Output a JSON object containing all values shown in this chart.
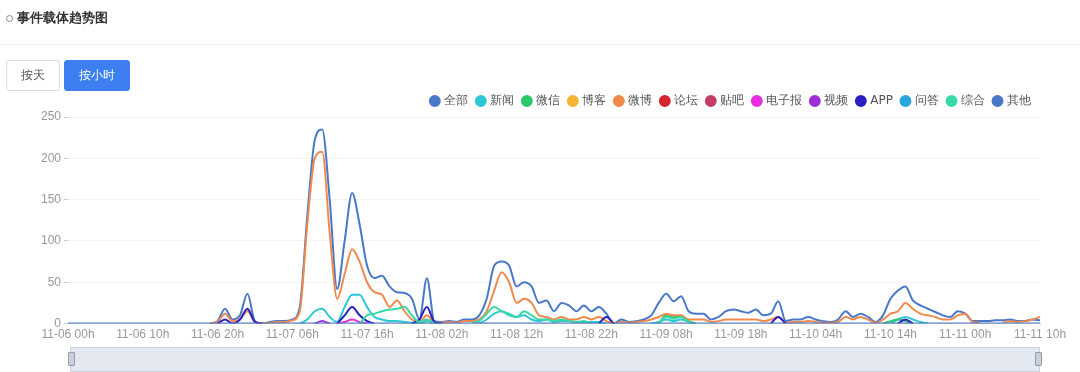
{
  "chart_data": {
    "type": "line",
    "title": "事件载体趋势图",
    "annotations": [
      "按天",
      "按小时"
    ],
    "categories": [
      "11-06 00h",
      null,
      null,
      null,
      null,
      null,
      null,
      null,
      null,
      null,
      "11-06 10h",
      null,
      null,
      null,
      null,
      null,
      null,
      null,
      null,
      null,
      "11-06 20h",
      null,
      null,
      null,
      null,
      null,
      null,
      null,
      null,
      null,
      "11-07 06h",
      null,
      null,
      null,
      null,
      null,
      null,
      null,
      null,
      null,
      "11-07 16h",
      null,
      null,
      null,
      null,
      null,
      null,
      null,
      null,
      null,
      "11-08 02h",
      null,
      null,
      null,
      null,
      null,
      null,
      null,
      null,
      null,
      "11-08 12h",
      null,
      null,
      null,
      null,
      null,
      null,
      null,
      null,
      null,
      "11-08 22h",
      null,
      null,
      null,
      null,
      null,
      null,
      null,
      null,
      null,
      "11-09 08h",
      null,
      null,
      null,
      null,
      null,
      null,
      null,
      null,
      null,
      "11-09 18h",
      null,
      null,
      null,
      null,
      null,
      null,
      null,
      null,
      null,
      "11-10 04h",
      null,
      null,
      null,
      null,
      null,
      null,
      null,
      null,
      null,
      "11-10 14h",
      null,
      null,
      null,
      null,
      null,
      null,
      null,
      null,
      null,
      "11-11 00h",
      null,
      null,
      null,
      null,
      null,
      null,
      null,
      null,
      null,
      "11-11 10h"
    ],
    "ylim": [
      0,
      250
    ],
    "yticks": [
      0,
      50,
      100,
      150,
      200,
      250
    ],
    "grid": "y",
    "legend": "top right",
    "marker": "none",
    "line_style": "solid",
    "series": [
      {
        "name": "全部",
        "color": "#4a78c8",
        "values": [
          null,
          null,
          null,
          null,
          null,
          null,
          null,
          null,
          null,
          null,
          null,
          null,
          null,
          null,
          null,
          null,
          null,
          null,
          null,
          0,
          3,
          18,
          5,
          10,
          36,
          3,
          0,
          2,
          3,
          3,
          5,
          20,
          130,
          222,
          235,
          150,
          42,
          100,
          158,
          120,
          70,
          55,
          58,
          45,
          38,
          37,
          30,
          5,
          55,
          3,
          2,
          3,
          2,
          5,
          5,
          10,
          30,
          70,
          75,
          70,
          45,
          50,
          45,
          25,
          28,
          15,
          25,
          22,
          15,
          22,
          15,
          20,
          12,
          0,
          5,
          2,
          3,
          5,
          10,
          25,
          36,
          27,
          33,
          15,
          12,
          12,
          5,
          8,
          15,
          17,
          15,
          13,
          17,
          10,
          12,
          27,
          3,
          5,
          5,
          8,
          5,
          3,
          2,
          5,
          15,
          8,
          12,
          8,
          2,
          10,
          30,
          40,
          45,
          28,
          22,
          18,
          14,
          10,
          8,
          15,
          12,
          3,
          3,
          3,
          4,
          4,
          5,
          3,
          3,
          5,
          4
        ]
      },
      {
        "name": "新闻",
        "color": "#2ec7d4",
        "values": [
          null,
          null,
          null,
          null,
          null,
          null,
          null,
          null,
          null,
          null,
          null,
          null,
          null,
          null,
          null,
          null,
          null,
          null,
          null,
          null,
          null,
          null,
          null,
          null,
          null,
          null,
          null,
          null,
          null,
          null,
          null,
          0,
          5,
          15,
          18,
          8,
          2,
          20,
          35,
          35,
          20,
          8,
          5,
          3,
          3,
          2,
          1,
          0,
          3,
          0,
          null,
          null,
          null,
          null,
          null,
          0,
          5,
          12,
          15,
          10,
          8,
          10,
          5,
          3,
          5,
          2,
          3,
          3,
          2,
          2,
          2,
          2,
          0,
          null,
          null,
          null,
          null,
          null,
          0,
          2,
          5,
          3,
          5,
          2,
          0,
          null,
          null,
          null,
          null,
          null,
          null,
          null,
          null,
          null,
          null,
          null,
          null,
          null,
          null,
          null,
          null,
          null,
          null,
          null,
          null,
          null,
          null,
          null,
          null,
          null,
          0,
          5,
          8,
          5,
          2,
          0,
          null,
          null,
          null,
          null,
          null,
          null,
          null,
          null,
          null,
          null,
          null,
          null,
          null,
          null,
          null
        ]
      },
      {
        "name": "微信",
        "color": "#2cc86a",
        "values": [
          null,
          null,
          null,
          null,
          null,
          null,
          null,
          null,
          null,
          null,
          null,
          null,
          null,
          null,
          null,
          null,
          null,
          null,
          null,
          null,
          null,
          null,
          null,
          null,
          null,
          null,
          null,
          null,
          null,
          null,
          null,
          null,
          null,
          null,
          null,
          null,
          null,
          null,
          null,
          null,
          null,
          null,
          null,
          null,
          null,
          null,
          null,
          null,
          null,
          null,
          null,
          null,
          null,
          null,
          null,
          null,
          null,
          null,
          null,
          null,
          null,
          null,
          null,
          null,
          null,
          null,
          null,
          null,
          null,
          null,
          null,
          null,
          null,
          null,
          null,
          null,
          null,
          null,
          null,
          0,
          10,
          8,
          8,
          3,
          0,
          null,
          null,
          null,
          null,
          null,
          null,
          null,
          null,
          null,
          null,
          null,
          null,
          null,
          null,
          null,
          null,
          null,
          null,
          null,
          null,
          null,
          null,
          null,
          null,
          0,
          3,
          5,
          3,
          0,
          null,
          null,
          null,
          null,
          null,
          null,
          null,
          null,
          null,
          null,
          null,
          null,
          null,
          null,
          null,
          null,
          null
        ]
      },
      {
        "name": "博客",
        "color": "#f5b335",
        "values": [
          null,
          null,
          null,
          null,
          null,
          null,
          null,
          null,
          null,
          null,
          null,
          null,
          null,
          null,
          null,
          null,
          null,
          null,
          null,
          null,
          null,
          null,
          null,
          null,
          null,
          null,
          null,
          null,
          null,
          null,
          null,
          null,
          null,
          null,
          null,
          null,
          null,
          null,
          null,
          null,
          null,
          null,
          null,
          null,
          null,
          null,
          null,
          null,
          null,
          null,
          null,
          null,
          null,
          null,
          null,
          null,
          null,
          null,
          null,
          null,
          null,
          null,
          null,
          null,
          null,
          null,
          null,
          null,
          null,
          null,
          null,
          null,
          null,
          null,
          null,
          null,
          null,
          null,
          null,
          null,
          null,
          null,
          null,
          null,
          null,
          null,
          null,
          null,
          null,
          null,
          null,
          null,
          null,
          null,
          null,
          null,
          null,
          null,
          null,
          null,
          null,
          null,
          null,
          null,
          null,
          null,
          null,
          null,
          null,
          null,
          null,
          null,
          null,
          null,
          null,
          null,
          null,
          null,
          null,
          null,
          null,
          null,
          null,
          null,
          null,
          null,
          null,
          null,
          null,
          null,
          null
        ]
      },
      {
        "name": "微博",
        "color": "#ef8a4c",
        "values": [
          null,
          null,
          null,
          null,
          null,
          null,
          null,
          null,
          null,
          null,
          null,
          null,
          null,
          null,
          null,
          null,
          null,
          null,
          null,
          0,
          2,
          12,
          3,
          5,
          15,
          2,
          0,
          1,
          2,
          2,
          4,
          15,
          120,
          200,
          208,
          110,
          30,
          60,
          90,
          75,
          50,
          38,
          35,
          20,
          28,
          15,
          5,
          2,
          10,
          1,
          1,
          2,
          1,
          3,
          3,
          5,
          15,
          40,
          62,
          50,
          25,
          30,
          25,
          10,
          8,
          5,
          8,
          5,
          5,
          8,
          5,
          8,
          3,
          0,
          2,
          1,
          2,
          3,
          5,
          8,
          12,
          10,
          10,
          5,
          5,
          5,
          2,
          3,
          5,
          5,
          5,
          5,
          5,
          3,
          5,
          8,
          1,
          2,
          2,
          3,
          2,
          1,
          1,
          2,
          8,
          5,
          8,
          5,
          1,
          5,
          12,
          15,
          25,
          18,
          12,
          10,
          8,
          5,
          5,
          10,
          12,
          2,
          1,
          null,
          null,
          1,
          3,
          2,
          3,
          5,
          8
        ]
      },
      {
        "name": "论坛",
        "color": "#d6262b",
        "values": [
          null,
          null,
          null,
          null,
          null,
          null,
          null,
          null,
          null,
          null,
          null,
          null,
          null,
          null,
          null,
          null,
          null,
          null,
          null,
          null,
          null,
          null,
          null,
          null,
          null,
          null,
          null,
          null,
          null,
          null,
          null,
          null,
          null,
          null,
          null,
          null,
          null,
          null,
          null,
          null,
          null,
          null,
          null,
          null,
          null,
          null,
          null,
          null,
          null,
          null,
          null,
          null,
          null,
          null,
          null,
          null,
          null,
          null,
          null,
          null,
          null,
          null,
          null,
          null,
          null,
          null,
          null,
          null,
          null,
          null,
          null,
          null,
          null,
          null,
          null,
          null,
          null,
          null,
          null,
          null,
          null,
          null,
          null,
          null,
          null,
          null,
          null,
          null,
          null,
          null,
          null,
          null,
          null,
          null,
          null,
          null,
          null,
          null,
          null,
          null,
          null,
          null,
          null,
          null,
          null,
          null,
          null,
          null,
          null,
          null,
          null,
          null,
          null,
          null,
          null,
          null,
          null,
          null,
          null,
          null,
          null,
          null,
          null,
          null,
          null,
          null,
          null,
          null,
          null,
          null,
          null
        ]
      },
      {
        "name": "贴吧",
        "color": "#c33e62",
        "values": [
          null,
          null,
          null,
          null,
          null,
          null,
          null,
          null,
          null,
          null,
          null,
          null,
          null,
          null,
          null,
          null,
          null,
          null,
          null,
          null,
          null,
          null,
          null,
          null,
          null,
          null,
          null,
          null,
          null,
          null,
          null,
          null,
          null,
          null,
          null,
          null,
          null,
          null,
          null,
          null,
          null,
          null,
          null,
          null,
          null,
          null,
          null,
          null,
          null,
          null,
          null,
          null,
          null,
          null,
          null,
          null,
          null,
          null,
          null,
          null,
          null,
          null,
          null,
          null,
          null,
          null,
          null,
          null,
          null,
          null,
          null,
          null,
          null,
          null,
          null,
          null,
          null,
          null,
          null,
          null,
          null,
          null,
          null,
          null,
          null,
          null,
          null,
          null,
          null,
          null,
          null,
          null,
          null,
          null,
          null,
          null,
          null,
          null,
          null,
          null,
          null,
          null,
          null,
          null,
          null,
          null,
          null,
          null,
          null,
          null,
          null,
          null,
          null,
          null,
          null,
          null,
          null,
          null,
          null,
          null,
          null,
          null,
          null,
          null,
          null,
          null,
          null,
          null,
          null,
          null,
          null
        ]
      },
      {
        "name": "电子报",
        "color": "#e72fe0",
        "values": [
          null,
          null,
          null,
          null,
          null,
          null,
          null,
          null,
          null,
          null,
          null,
          null,
          null,
          null,
          null,
          null,
          null,
          null,
          null,
          null,
          null,
          null,
          null,
          null,
          null,
          null,
          null,
          null,
          null,
          null,
          null,
          null,
          null,
          null,
          null,
          null,
          0,
          2,
          5,
          2,
          0,
          null,
          null,
          null,
          null,
          null,
          null,
          null,
          null,
          null,
          null,
          null,
          null,
          null,
          null,
          null,
          null,
          null,
          null,
          null,
          null,
          null,
          null,
          null,
          null,
          null,
          null,
          null,
          null,
          null,
          null,
          null,
          null,
          null,
          null,
          null,
          null,
          null,
          null,
          null,
          null,
          null,
          null,
          null,
          null,
          null,
          null,
          null,
          null,
          null,
          null,
          null,
          null,
          null,
          null,
          null,
          null,
          null,
          null,
          null,
          null,
          null,
          null,
          null,
          null,
          null,
          null,
          null,
          null,
          null,
          null,
          null,
          null,
          null,
          null,
          null,
          null,
          null,
          null,
          null,
          null,
          null,
          null,
          null,
          null,
          null,
          null,
          null,
          null,
          null,
          null
        ]
      },
      {
        "name": "视频",
        "color": "#9b2fd8",
        "values": [
          null,
          null,
          null,
          null,
          null,
          null,
          null,
          null,
          null,
          null,
          null,
          null,
          null,
          null,
          null,
          null,
          null,
          null,
          null,
          null,
          null,
          null,
          null,
          null,
          null,
          null,
          null,
          null,
          null,
          null,
          null,
          null,
          null,
          0,
          3,
          0,
          null,
          null,
          null,
          null,
          null,
          null,
          null,
          null,
          null,
          null,
          null,
          null,
          null,
          null,
          null,
          null,
          null,
          null,
          null,
          null,
          null,
          null,
          null,
          null,
          null,
          null,
          null,
          null,
          null,
          null,
          null,
          null,
          null,
          null,
          null,
          null,
          null,
          null,
          null,
          null,
          null,
          null,
          null,
          null,
          null,
          null,
          null,
          null,
          null,
          null,
          null,
          null,
          null,
          null,
          null,
          null,
          null,
          null,
          null,
          null,
          null,
          null,
          null,
          null,
          null,
          null,
          null,
          null,
          null,
          null,
          null,
          null,
          null,
          null,
          null,
          null,
          null,
          null,
          null,
          null,
          null,
          null,
          null,
          null,
          null,
          null,
          null,
          null,
          null,
          null,
          null,
          null,
          null,
          null,
          null
        ]
      },
      {
        "name": "APP",
        "color": "#2a1fc0",
        "values": [
          null,
          null,
          null,
          null,
          null,
          null,
          null,
          null,
          null,
          null,
          null,
          null,
          null,
          null,
          null,
          null,
          null,
          null,
          null,
          null,
          0,
          5,
          0,
          5,
          18,
          2,
          0,
          null,
          null,
          null,
          null,
          null,
          null,
          null,
          null,
          null,
          0,
          10,
          20,
          10,
          3,
          0,
          null,
          null,
          null,
          null,
          0,
          5,
          20,
          2,
          0,
          null,
          null,
          null,
          null,
          null,
          null,
          null,
          null,
          null,
          null,
          null,
          null,
          null,
          null,
          null,
          null,
          null,
          null,
          null,
          null,
          0,
          8,
          0,
          null,
          null,
          null,
          null,
          null,
          null,
          null,
          null,
          null,
          null,
          null,
          null,
          null,
          null,
          null,
          null,
          null,
          null,
          null,
          null,
          0,
          8,
          0,
          null,
          null,
          null,
          null,
          null,
          null,
          null,
          null,
          null,
          null,
          null,
          null,
          null,
          null,
          0,
          5,
          0,
          null,
          null,
          null,
          null,
          null,
          null,
          null,
          null,
          null,
          null,
          null,
          null,
          null,
          null,
          null,
          null,
          null
        ]
      },
      {
        "name": "问答",
        "color": "#2aa5dd",
        "values": [
          null,
          null,
          null,
          null,
          null,
          null,
          null,
          null,
          null,
          null,
          null,
          null,
          null,
          null,
          null,
          null,
          null,
          null,
          null,
          null,
          null,
          null,
          null,
          null,
          null,
          null,
          null,
          null,
          null,
          null,
          null,
          null,
          null,
          null,
          null,
          null,
          null,
          null,
          null,
          null,
          null,
          null,
          null,
          null,
          null,
          null,
          null,
          null,
          null,
          null,
          null,
          null,
          null,
          null,
          null,
          null,
          null,
          null,
          null,
          null,
          null,
          null,
          null,
          null,
          null,
          null,
          null,
          null,
          null,
          null,
          null,
          null,
          null,
          null,
          null,
          null,
          null,
          null,
          null,
          null,
          null,
          null,
          null,
          null,
          null,
          null,
          null,
          null,
          null,
          null,
          null,
          null,
          null,
          null,
          null,
          null,
          null,
          null,
          null,
          null,
          null,
          null,
          null,
          null,
          null,
          null,
          null,
          null,
          null,
          null,
          null,
          null,
          null,
          null,
          null,
          null,
          null,
          null,
          null,
          null,
          null,
          null,
          null,
          null,
          null,
          null,
          null,
          null,
          null,
          null,
          null
        ]
      },
      {
        "name": "综合",
        "color": "#38d9a6",
        "values": [
          null,
          null,
          null,
          null,
          null,
          null,
          null,
          null,
          null,
          null,
          null,
          null,
          null,
          null,
          null,
          null,
          null,
          null,
          null,
          null,
          null,
          null,
          null,
          null,
          null,
          null,
          null,
          null,
          null,
          null,
          null,
          null,
          null,
          null,
          null,
          null,
          null,
          null,
          null,
          0,
          10,
          12,
          15,
          17,
          18,
          20,
          10,
          2,
          5,
          0,
          null,
          null,
          null,
          null,
          1,
          3,
          12,
          20,
          15,
          12,
          8,
          15,
          10,
          5,
          5,
          3,
          5,
          3,
          2,
          3,
          0,
          null,
          null,
          null,
          null,
          null,
          null,
          null,
          null,
          0,
          8,
          6,
          8,
          2,
          0,
          null,
          null,
          null,
          null,
          null,
          null,
          null,
          null,
          null,
          null,
          null,
          null,
          null,
          null,
          null,
          null,
          null,
          null,
          null,
          null,
          null,
          null,
          null,
          null,
          null,
          null,
          null,
          null,
          null,
          null,
          null,
          null,
          null,
          null,
          null,
          null,
          null,
          null,
          null,
          null,
          null,
          null,
          null,
          null,
          null,
          null
        ]
      },
      {
        "name": "其他",
        "color": "#4a78c8",
        "values": [
          0,
          0,
          0,
          0,
          0,
          0,
          0,
          0,
          0,
          0,
          0,
          0,
          0,
          0,
          0,
          0,
          0,
          0,
          0,
          0,
          0,
          0,
          0,
          0,
          0,
          0,
          0,
          0,
          0,
          0,
          0,
          0,
          0,
          0,
          0,
          0,
          0,
          0,
          0,
          0,
          0,
          0,
          0,
          0,
          0,
          0,
          0,
          0,
          0,
          0,
          0,
          0,
          0,
          0,
          0,
          0,
          0,
          0,
          0,
          0,
          0,
          0,
          0,
          0,
          0,
          0,
          0,
          0,
          0,
          0,
          0,
          0,
          0,
          0,
          0,
          0,
          0,
          0,
          0,
          0,
          0,
          0,
          0,
          0,
          0,
          0,
          0,
          0,
          0,
          0,
          0,
          0,
          0,
          0,
          0,
          0,
          0,
          0,
          0,
          0,
          0,
          0,
          0,
          0,
          0,
          0,
          0,
          0,
          0,
          0,
          0,
          0,
          0,
          0,
          0,
          0,
          0,
          0,
          0,
          0,
          0,
          0,
          0,
          0,
          0,
          0,
          0,
          0,
          0,
          0,
          0
        ]
      }
    ]
  }
}
